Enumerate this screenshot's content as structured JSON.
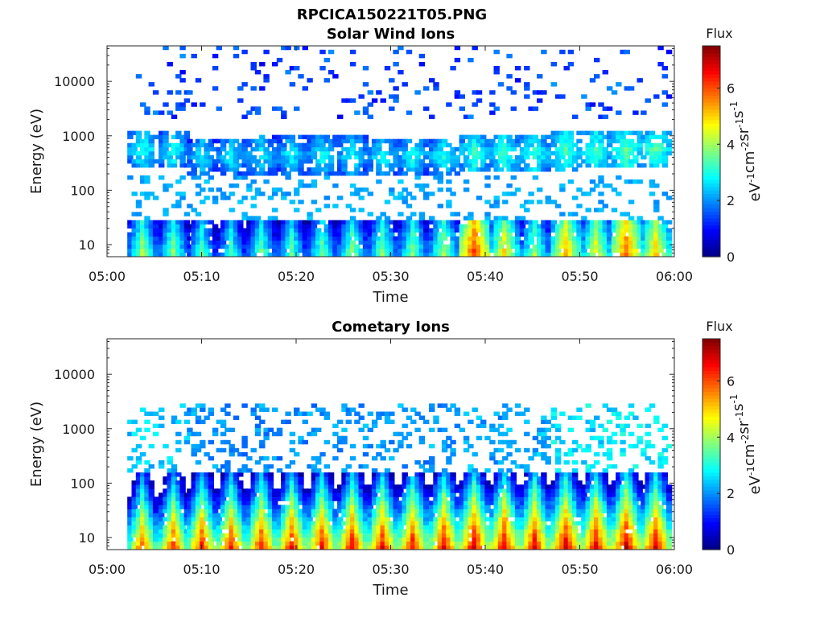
{
  "figure": {
    "filename": "RPCICA150221T05.PNG"
  },
  "chart_data": [
    {
      "type": "heatmap",
      "title": "Solar Wind Ions",
      "xlabel": "Time",
      "ylabel": "Energy (eV)",
      "x_ticks": [
        "05:00",
        "05:10",
        "05:20",
        "05:30",
        "05:40",
        "05:50",
        "06:00"
      ],
      "xlim": [
        "05:00",
        "06:00"
      ],
      "y_scale": "log",
      "y_ticks": [
        10,
        100,
        1000,
        10000
      ],
      "y_tick_labels": [
        "10",
        "100",
        "1000",
        "10000"
      ],
      "ylim": [
        6,
        45000
      ],
      "colorbar": {
        "title": "Flux",
        "label": "eV-1cm-2sr-1s-1",
        "range": [
          0,
          7.5
        ],
        "ticks": [
          0,
          2,
          4,
          6
        ],
        "colormap": "jet"
      },
      "scan_times_min": [
        3.8,
        7.1,
        10.1,
        13.2,
        16.4,
        19.6,
        22.8,
        26.0,
        29.2,
        32.4,
        35.7,
        38.9,
        42.1,
        45.3,
        48.6,
        51.8,
        55.0,
        58.1
      ],
      "low_band_flux": [
        4.2,
        4.0,
        3.6,
        3.5,
        3.8,
        3.7,
        3.8,
        4.0,
        4.0,
        4.0,
        4.3,
        6.3,
        5.0,
        4.2,
        5.4,
        4.8,
        6.0,
        5.2
      ],
      "peak_band_eV": [
        550,
        550,
        400,
        420,
        450,
        450,
        430,
        430,
        420,
        420,
        420,
        470,
        460,
        460,
        520,
        540,
        560,
        560
      ],
      "peak_band_flux": [
        3.1,
        3.0,
        2.8,
        2.8,
        2.9,
        2.9,
        2.9,
        3.0,
        3.0,
        3.0,
        3.1,
        3.3,
        3.3,
        3.2,
        3.4,
        3.4,
        3.6,
        3.5
      ]
    },
    {
      "type": "heatmap",
      "title": "Cometary Ions",
      "xlabel": "Time",
      "ylabel": "Energy (eV)",
      "x_ticks": [
        "05:00",
        "05:10",
        "05:20",
        "05:30",
        "05:40",
        "05:50",
        "06:00"
      ],
      "xlim": [
        "05:00",
        "06:00"
      ],
      "y_scale": "log",
      "y_ticks": [
        10,
        100,
        1000,
        10000
      ],
      "y_tick_labels": [
        "10",
        "100",
        "1000",
        "10000"
      ],
      "ylim": [
        6,
        45000
      ],
      "colorbar": {
        "title": "Flux",
        "label": "eV-1cm-2sr-1s-1",
        "range": [
          0,
          7.5
        ],
        "ticks": [
          0,
          2,
          4,
          6
        ],
        "colormap": "jet"
      },
      "scan_times_min": [
        3.8,
        7.1,
        10.1,
        13.2,
        16.4,
        19.6,
        22.8,
        26.0,
        29.2,
        32.4,
        35.7,
        38.9,
        42.1,
        45.3,
        48.6,
        51.8,
        55.0,
        58.1
      ],
      "low_band_flux": [
        6.1,
        6.3,
        6.5,
        6.5,
        6.6,
        6.6,
        6.6,
        6.7,
        6.7,
        6.7,
        6.8,
        7.0,
        6.9,
        6.8,
        7.0,
        6.9,
        7.1,
        6.9
      ],
      "peak_band_eV": [
        1000,
        900,
        300,
        300,
        300,
        300,
        300,
        300,
        300,
        300,
        300,
        300,
        300,
        300,
        500,
        500,
        500,
        500
      ],
      "peak_band_flux": [
        2.3,
        2.2,
        1.8,
        1.8,
        1.8,
        1.8,
        1.8,
        1.9,
        1.9,
        1.9,
        1.9,
        2.0,
        2.0,
        2.0,
        2.4,
        2.4,
        2.5,
        2.5
      ]
    }
  ]
}
